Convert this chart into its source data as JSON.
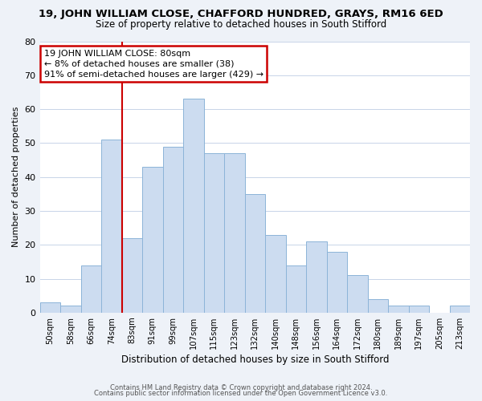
{
  "title": "19, JOHN WILLIAM CLOSE, CHAFFORD HUNDRED, GRAYS, RM16 6ED",
  "subtitle": "Size of property relative to detached houses in South Stifford",
  "xlabel": "Distribution of detached houses by size in South Stifford",
  "ylabel": "Number of detached properties",
  "bar_color": "#ccdcf0",
  "bar_edge_color": "#8cb4d8",
  "categories": [
    "50sqm",
    "58sqm",
    "66sqm",
    "74sqm",
    "83sqm",
    "91sqm",
    "99sqm",
    "107sqm",
    "115sqm",
    "123sqm",
    "132sqm",
    "140sqm",
    "148sqm",
    "156sqm",
    "164sqm",
    "172sqm",
    "180sqm",
    "189sqm",
    "197sqm",
    "205sqm",
    "213sqm"
  ],
  "values": [
    3,
    2,
    14,
    51,
    22,
    43,
    49,
    63,
    47,
    47,
    35,
    23,
    14,
    21,
    18,
    11,
    4,
    2,
    2,
    0,
    2
  ],
  "ylim": [
    0,
    80
  ],
  "yticks": [
    0,
    10,
    20,
    30,
    40,
    50,
    60,
    70,
    80
  ],
  "vline_color": "#cc0000",
  "annotation_text": "19 JOHN WILLIAM CLOSE: 80sqm\n← 8% of detached houses are smaller (38)\n91% of semi-detached houses are larger (429) →",
  "annotation_box_edge": "#cc0000",
  "footer_line1": "Contains HM Land Registry data © Crown copyright and database right 2024.",
  "footer_line2": "Contains public sector information licensed under the Open Government Licence v3.0.",
  "background_color": "#eef2f8",
  "plot_background": "#ffffff",
  "grid_color": "#c8d4e8"
}
